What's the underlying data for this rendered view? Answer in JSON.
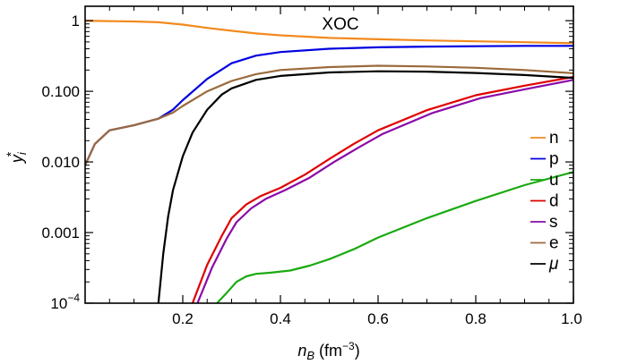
{
  "chart_data": {
    "type": "line",
    "title": "XOC",
    "xlabel": {
      "main": "n",
      "sub": "B",
      "unit_open": " (fm",
      "unit_exp": "−3",
      "unit_close": ")"
    },
    "ylabel": {
      "main": "y",
      "sub": "i",
      "sup": "*"
    },
    "xlim": [
      0.0,
      1.0
    ],
    "ylim": [
      0.0001,
      1.6
    ],
    "yscale": "log",
    "xticks": [
      {
        "value": 0.2,
        "label": "0.2"
      },
      {
        "value": 0.4,
        "label": "0.4"
      },
      {
        "value": 0.6,
        "label": "0.6"
      },
      {
        "value": 0.8,
        "label": "0.8"
      },
      {
        "value": 1.0,
        "label": "1.0"
      }
    ],
    "yticks": [
      {
        "value": 0.0001,
        "label": "10",
        "exp": "−4"
      },
      {
        "value": 0.001,
        "label": "0.001"
      },
      {
        "value": 0.01,
        "label": "0.010"
      },
      {
        "value": 0.1,
        "label": "0.100"
      },
      {
        "value": 1,
        "label": "1"
      }
    ],
    "legend_position": "right",
    "series": [
      {
        "name": "n",
        "color": "#f28a1e",
        "x": [
          0.0,
          0.05,
          0.1,
          0.15,
          0.2,
          0.25,
          0.3,
          0.35,
          0.4,
          0.5,
          0.6,
          0.7,
          0.8,
          0.9,
          1.0
        ],
        "y": [
          1.0,
          0.985,
          0.975,
          0.95,
          0.88,
          0.79,
          0.72,
          0.66,
          0.62,
          0.57,
          0.545,
          0.525,
          0.51,
          0.495,
          0.48
        ]
      },
      {
        "name": "p",
        "color": "#0000e0",
        "x": [
          0.0,
          0.02,
          0.05,
          0.08,
          0.1,
          0.12,
          0.15,
          0.18,
          0.2,
          0.25,
          0.3,
          0.35,
          0.4,
          0.5,
          0.6,
          0.7,
          0.8,
          0.9,
          1.0
        ],
        "y": [
          0.009,
          0.018,
          0.028,
          0.031,
          0.033,
          0.036,
          0.041,
          0.055,
          0.075,
          0.15,
          0.25,
          0.32,
          0.36,
          0.4,
          0.42,
          0.43,
          0.435,
          0.44,
          0.44
        ]
      },
      {
        "name": "u",
        "color": "#1aaa10",
        "x": [
          0.27,
          0.29,
          0.31,
          0.33,
          0.35,
          0.38,
          0.42,
          0.46,
          0.5,
          0.55,
          0.6,
          0.7,
          0.8,
          0.9,
          1.0
        ],
        "y": [
          0.0001,
          0.00014,
          0.0002,
          0.00024,
          0.00026,
          0.00027,
          0.00029,
          0.00034,
          0.00042,
          0.00058,
          0.00085,
          0.0016,
          0.0028,
          0.0047,
          0.0072
        ]
      },
      {
        "name": "d",
        "color": "#e00000",
        "x": [
          0.2,
          0.22,
          0.25,
          0.28,
          0.3,
          0.33,
          0.36,
          0.4,
          0.45,
          0.5,
          0.55,
          0.6,
          0.7,
          0.8,
          0.9,
          1.0
        ],
        "y": [
          5e-05,
          0.0001,
          0.00035,
          0.0009,
          0.0016,
          0.0025,
          0.0033,
          0.0043,
          0.0066,
          0.011,
          0.018,
          0.028,
          0.054,
          0.088,
          0.12,
          0.16
        ]
      },
      {
        "name": "s",
        "color": "#8a0aa8",
        "x": [
          0.21,
          0.23,
          0.26,
          0.29,
          0.31,
          0.34,
          0.37,
          0.41,
          0.46,
          0.51,
          0.56,
          0.61,
          0.71,
          0.81,
          0.91,
          1.0
        ],
        "y": [
          5e-05,
          0.0001,
          0.00032,
          0.00082,
          0.0014,
          0.0022,
          0.003,
          0.004,
          0.006,
          0.01,
          0.016,
          0.025,
          0.049,
          0.08,
          0.11,
          0.145
        ]
      },
      {
        "name": "e",
        "color": "#9b6a3c",
        "x": [
          0.0,
          0.02,
          0.05,
          0.08,
          0.1,
          0.12,
          0.15,
          0.18,
          0.2,
          0.25,
          0.3,
          0.35,
          0.4,
          0.5,
          0.6,
          0.7,
          0.8,
          0.9,
          1.0
        ],
        "y": [
          0.009,
          0.018,
          0.028,
          0.031,
          0.033,
          0.036,
          0.041,
          0.05,
          0.062,
          0.1,
          0.14,
          0.175,
          0.2,
          0.22,
          0.23,
          0.225,
          0.215,
          0.2,
          0.18
        ]
      },
      {
        "name": "μ",
        "color": "#000000",
        "x": [
          0.145,
          0.15,
          0.16,
          0.17,
          0.18,
          0.2,
          0.22,
          0.25,
          0.28,
          0.3,
          0.35,
          0.4,
          0.5,
          0.6,
          0.7,
          0.8,
          0.9,
          1.0
        ],
        "y": [
          5e-05,
          0.0001,
          0.0005,
          0.0017,
          0.004,
          0.012,
          0.026,
          0.055,
          0.09,
          0.11,
          0.145,
          0.165,
          0.185,
          0.192,
          0.19,
          0.182,
          0.17,
          0.155
        ]
      }
    ]
  }
}
